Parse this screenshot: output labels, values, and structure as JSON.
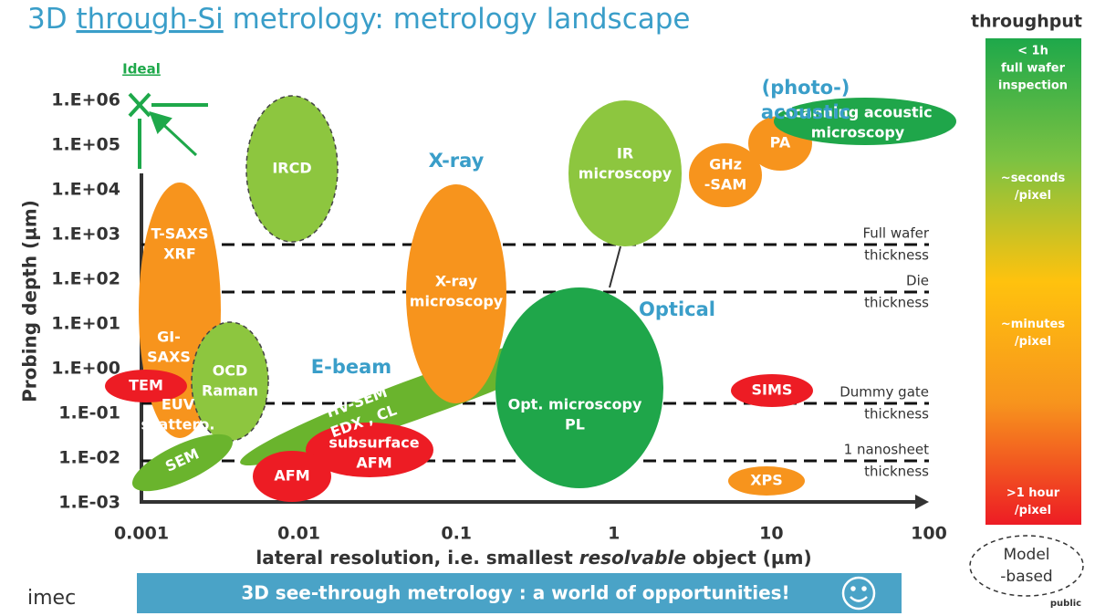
{
  "title": {
    "prefix": "3D ",
    "underlined": "through-Si",
    "suffix": " metrology: metrology landscape"
  },
  "ideal": "Ideal",
  "y_axis": {
    "label": "Probing depth (µm)",
    "ticks": [
      "1.E+06",
      "1.E+05",
      "1.E+04",
      "1.E+03",
      "1.E+02",
      "1.E+01",
      "1.E+00",
      "1.E-01",
      "1.E-02",
      "1.E-03"
    ]
  },
  "x_axis": {
    "label_prefix": "lateral resolution, i.e. smallest ",
    "label_emphasis": "resolvable",
    "label_suffix": " object (µm)",
    "ticks": [
      "0.001",
      "0.01",
      "0.1",
      "1",
      "10",
      "100"
    ]
  },
  "groups": [
    "X-ray",
    "Optical",
    "E-beam",
    "(photo-)",
    "acoustic"
  ],
  "regions": [
    {
      "lines": [
        "IRCD"
      ]
    },
    {
      "lines": [
        "T-SAXS",
        "XRF"
      ]
    },
    {
      "lines": [
        "GI-",
        "SAXS"
      ]
    },
    {
      "lines": [
        "EUV",
        "scattero."
      ]
    },
    {
      "lines": [
        "OCD",
        "Raman"
      ]
    },
    {
      "lines": [
        "TEM"
      ]
    },
    {
      "lines": [
        "SEM"
      ]
    },
    {
      "lines": [
        "HV-SEM",
        "EDX , CL"
      ]
    },
    {
      "lines": [
        "subsurface",
        "AFM"
      ]
    },
    {
      "lines": [
        "AFM"
      ]
    },
    {
      "lines": [
        "X-ray",
        "microscopy"
      ]
    },
    {
      "lines": [
        "Opt. microscopy",
        "PL"
      ]
    },
    {
      "lines": [
        "IR",
        "microscopy"
      ]
    },
    {
      "lines": [
        "GHz",
        "-SAM"
      ]
    },
    {
      "lines": [
        "PA"
      ]
    },
    {
      "lines": [
        "Scanning acoustic",
        "microscopy"
      ]
    },
    {
      "lines": [
        "SIMS"
      ]
    },
    {
      "lines": [
        "XPS"
      ]
    }
  ],
  "thresholds": [
    {
      "lines": [
        "Full wafer",
        "thickness"
      ]
    },
    {
      "lines": [
        "Die",
        "thickness"
      ]
    },
    {
      "lines": [
        "Dummy gate",
        "thickness"
      ]
    },
    {
      "lines": [
        "1 nanosheet",
        "thickness"
      ]
    }
  ],
  "throughput": {
    "title": "throughput",
    "levels": [
      {
        "lines": [
          "< 1h",
          "full wafer",
          "inspection"
        ]
      },
      {
        "lines": [
          "~seconds",
          "/pixel"
        ]
      },
      {
        "lines": [
          "~minutes",
          "/pixel"
        ]
      },
      {
        "lines": [
          ">1 hour",
          "/pixel"
        ]
      }
    ]
  },
  "model_based": {
    "lines": [
      "Model",
      "-based"
    ]
  },
  "banner": "3D see-through metrology : a world of opportunities!",
  "logo": "imec",
  "classification": "public"
}
